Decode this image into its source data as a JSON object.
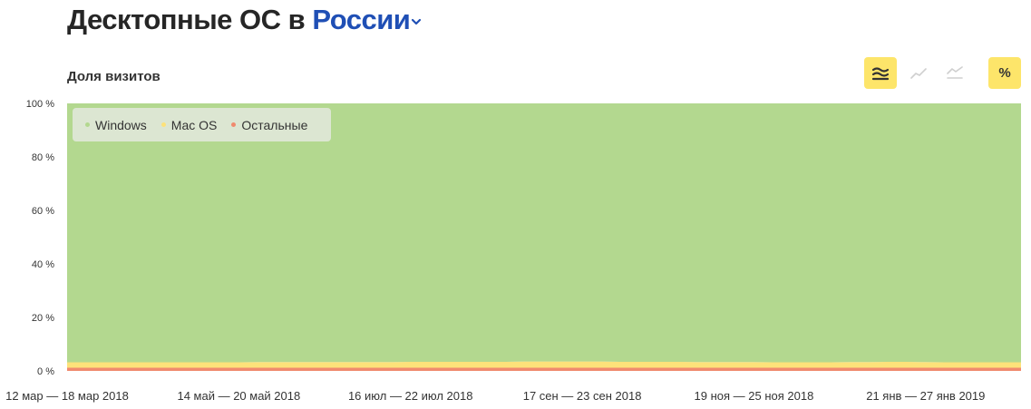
{
  "header": {
    "title_prefix": "Десктопные ОС в ",
    "title_region": "России"
  },
  "subtitle": "Доля визитов",
  "toolbar": {
    "buttons": [
      {
        "name": "stacked-area-mode",
        "active": true
      },
      {
        "name": "line-mode",
        "active": false
      },
      {
        "name": "stacked-line-mode",
        "active": false
      },
      {
        "name": "percent-mode",
        "active": true,
        "glyph": "%"
      }
    ]
  },
  "colors": {
    "windows": "#b3d88f",
    "macos": "#fde27a",
    "others": "#f08a6e",
    "accent_button": "#fde56a",
    "region_link": "#1f4fb5"
  },
  "chart_data": {
    "type": "area",
    "stacked": true,
    "ylabel": "",
    "ylim": [
      0,
      100
    ],
    "y_ticks": [
      "100 %",
      "80 %",
      "60 %",
      "40 %",
      "20 %",
      "0 %"
    ],
    "x_tick_labels": [
      "12 мар — 18 мар 2018",
      "14 май — 20 май 2018",
      "16 июл — 22 июл 2018",
      "17 сен — 23 сен 2018",
      "19 ноя — 25 ноя 2018",
      "21 янв — 27 янв 2019"
    ],
    "x_tick_week_index": [
      0,
      9,
      18,
      27,
      36,
      45
    ],
    "legend_position": "top-left",
    "series": [
      {
        "name": "Остальные",
        "color": "#f08a6e",
        "values": [
          1.2,
          1.2,
          1.2,
          1.2,
          1.2,
          1.2,
          1.2,
          1.2,
          1.2,
          1.2,
          1.2,
          1.2,
          1.2,
          1.2,
          1.2,
          1.2,
          1.2,
          1.2,
          1.2,
          1.2,
          1.2,
          1.2,
          1.2,
          1.2,
          1.2,
          1.2,
          1.2,
          1.2,
          1.2,
          1.2,
          1.2,
          1.2,
          1.2,
          1.2,
          1.2,
          1.2,
          1.2,
          1.2,
          1.2,
          1.2,
          1.2,
          1.2,
          1.2,
          1.2,
          1.2,
          1.2,
          1.2,
          1.2,
          1.2,
          1.2,
          1.2
        ]
      },
      {
        "name": "Mac OS",
        "color": "#fde27a",
        "values": [
          2.0,
          2.0,
          2.0,
          2.0,
          2.0,
          2.0,
          2.0,
          2.0,
          2.0,
          2.0,
          2.1,
          2.1,
          2.1,
          2.1,
          2.1,
          2.1,
          2.1,
          2.1,
          2.2,
          2.2,
          2.2,
          2.2,
          2.2,
          2.2,
          2.3,
          2.3,
          2.3,
          2.3,
          2.3,
          2.2,
          2.2,
          2.2,
          2.2,
          2.1,
          2.1,
          2.1,
          2.1,
          2.0,
          2.0,
          2.0,
          2.0,
          2.1,
          2.1,
          2.2,
          2.2,
          2.1,
          2.0,
          2.0,
          2.0,
          2.0,
          2.0
        ]
      },
      {
        "name": "Windows",
        "color": "#b3d88f",
        "values": [
          96.8,
          96.8,
          96.8,
          96.8,
          96.8,
          96.8,
          96.8,
          96.8,
          96.8,
          96.8,
          96.7,
          96.7,
          96.7,
          96.7,
          96.7,
          96.7,
          96.7,
          96.7,
          96.6,
          96.6,
          96.6,
          96.6,
          96.6,
          96.6,
          96.5,
          96.5,
          96.5,
          96.5,
          96.5,
          96.6,
          96.6,
          96.6,
          96.6,
          96.7,
          96.7,
          96.7,
          96.7,
          96.8,
          96.8,
          96.8,
          96.8,
          96.7,
          96.7,
          96.6,
          96.6,
          96.7,
          96.8,
          96.8,
          96.8,
          96.8,
          96.8
        ]
      }
    ]
  }
}
